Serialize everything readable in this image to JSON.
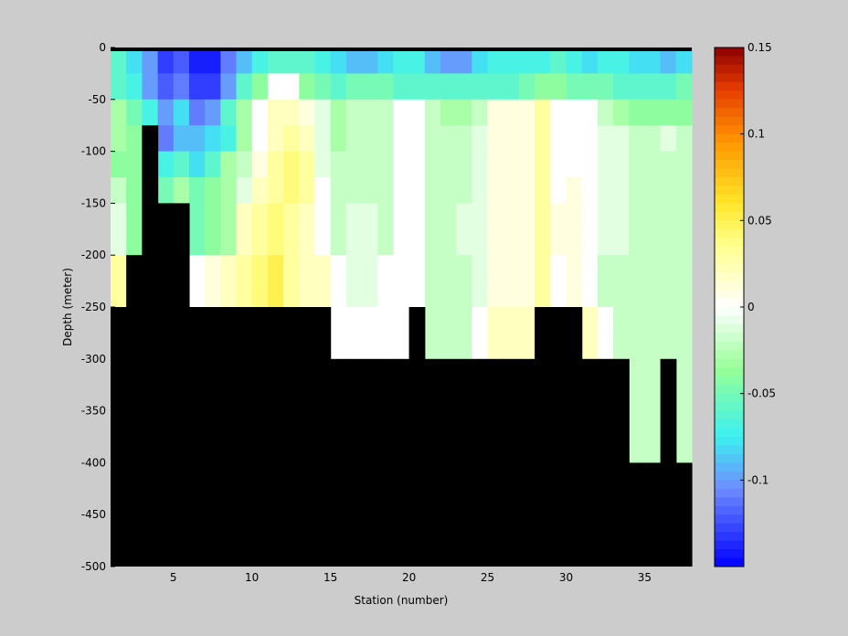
{
  "chart_data": {
    "type": "heatmap",
    "title": "",
    "xlabel": "Station (number)",
    "ylabel": "Depth (meter)",
    "xlim": [
      1,
      38
    ],
    "ylim": [
      -500,
      0
    ],
    "xticks": [
      5,
      10,
      15,
      20,
      25,
      30,
      35
    ],
    "yticks": [
      0,
      -50,
      -100,
      -150,
      -200,
      -250,
      -300,
      -350,
      -400,
      -450,
      -500
    ],
    "grid": false,
    "colorbar": {
      "range": [
        -0.15,
        0.15
      ],
      "ticks": [
        0.15,
        0.1,
        0.05,
        0,
        -0.05,
        -0.1
      ],
      "colormap": "blue-cyan-green-white-yellow-orange-red",
      "levels": 60
    },
    "mask_color": "#000000",
    "stations": [
      1,
      2,
      3,
      4,
      5,
      6,
      7,
      8,
      9,
      10,
      11,
      12,
      13,
      14,
      15,
      16,
      17,
      18,
      19,
      20,
      21,
      22,
      23,
      24,
      25,
      26,
      27,
      28,
      29,
      30,
      31,
      32,
      33,
      34,
      35,
      36,
      37
    ],
    "depth_bins": [
      [
        0,
        -25
      ],
      [
        -25,
        -50
      ],
      [
        -50,
        -75
      ],
      [
        -75,
        -100
      ],
      [
        -100,
        -125
      ],
      [
        -125,
        -150
      ],
      [
        -150,
        -175
      ],
      [
        -175,
        -200
      ],
      [
        -200,
        -225
      ],
      [
        -225,
        -250
      ],
      [
        -250,
        -275
      ],
      [
        -275,
        -300
      ],
      [
        -300,
        -350
      ],
      [
        -350,
        -400
      ]
    ],
    "bottom_depth": [
      -250,
      -200,
      -75,
      -150,
      -150,
      -250,
      -250,
      -250,
      -250,
      -250,
      -250,
      -250,
      -250,
      -250,
      -300,
      -300,
      -300,
      -300,
      -300,
      -250,
      -300,
      -300,
      -300,
      -300,
      -300,
      -300,
      -300,
      -250,
      -250,
      -250,
      -300,
      -300,
      -300,
      -400,
      -400,
      -300,
      -400
    ],
    "values": [
      [
        -0.06,
        -0.08,
        -0.1,
        -0.13,
        -0.12,
        -0.14,
        -0.14,
        -0.11,
        -0.09,
        -0.07,
        -0.06,
        -0.06,
        -0.06,
        -0.07,
        -0.08,
        -0.09,
        -0.09,
        -0.08,
        -0.07,
        -0.07,
        -0.09,
        -0.1,
        -0.1,
        -0.08,
        -0.07,
        -0.07,
        -0.07,
        -0.07,
        -0.06,
        -0.07,
        -0.08,
        -0.07,
        -0.07,
        -0.08,
        -0.08,
        -0.09,
        -0.08
      ],
      [
        -0.06,
        -0.07,
        -0.1,
        -0.12,
        -0.11,
        -0.13,
        -0.13,
        -0.1,
        -0.06,
        -0.04,
        0.0,
        0.0,
        -0.04,
        -0.05,
        -0.06,
        -0.05,
        -0.05,
        -0.05,
        -0.06,
        -0.06,
        -0.06,
        -0.06,
        -0.06,
        -0.06,
        -0.06,
        -0.06,
        -0.05,
        -0.04,
        -0.04,
        -0.05,
        -0.05,
        -0.05,
        -0.06,
        -0.06,
        -0.06,
        -0.06,
        -0.05
      ],
      [
        -0.03,
        -0.05,
        -0.07,
        -0.1,
        -0.08,
        -0.11,
        -0.1,
        -0.06,
        -0.03,
        0.0,
        0.02,
        0.02,
        0.01,
        -0.01,
        -0.03,
        -0.02,
        -0.02,
        -0.02,
        0.0,
        0.0,
        -0.02,
        -0.03,
        -0.03,
        -0.02,
        0.01,
        0.01,
        0.01,
        0.03,
        0.0,
        0.0,
        0.0,
        -0.02,
        -0.03,
        -0.04,
        -0.04,
        -0.04,
        -0.04
      ],
      [
        -0.03,
        -0.04,
        null,
        -0.11,
        -0.09,
        -0.09,
        -0.08,
        -0.07,
        -0.03,
        0.0,
        0.02,
        0.03,
        0.02,
        -0.01,
        -0.03,
        -0.02,
        -0.02,
        -0.02,
        0.0,
        0.0,
        -0.02,
        -0.02,
        -0.02,
        -0.01,
        0.01,
        0.01,
        0.01,
        0.03,
        0.0,
        0.0,
        0.0,
        -0.01,
        -0.01,
        -0.02,
        -0.02,
        -0.01,
        -0.02
      ],
      [
        -0.04,
        -0.04,
        null,
        -0.07,
        -0.06,
        -0.08,
        -0.06,
        -0.03,
        -0.02,
        0.01,
        0.03,
        0.04,
        0.03,
        -0.01,
        -0.02,
        -0.02,
        -0.02,
        -0.02,
        0.0,
        0.0,
        -0.02,
        -0.02,
        -0.02,
        -0.01,
        0.01,
        0.01,
        0.01,
        0.03,
        0.0,
        0.0,
        0.0,
        -0.01,
        -0.01,
        -0.02,
        -0.02,
        -0.02,
        -0.02
      ],
      [
        -0.02,
        -0.04,
        null,
        -0.05,
        -0.03,
        -0.05,
        -0.04,
        -0.03,
        -0.01,
        0.02,
        0.03,
        0.04,
        0.03,
        0.0,
        -0.02,
        -0.02,
        -0.02,
        -0.02,
        0.0,
        0.0,
        -0.02,
        -0.02,
        -0.02,
        -0.01,
        0.01,
        0.01,
        0.01,
        0.03,
        0.0,
        0.01,
        0.0,
        -0.01,
        -0.01,
        -0.02,
        -0.02,
        -0.02,
        -0.02
      ],
      [
        -0.01,
        -0.04,
        null,
        null,
        null,
        -0.05,
        -0.04,
        -0.03,
        0.02,
        0.03,
        0.04,
        0.03,
        0.02,
        0.0,
        -0.02,
        -0.01,
        -0.01,
        -0.02,
        0.0,
        0.0,
        -0.02,
        -0.02,
        -0.01,
        -0.01,
        0.01,
        0.01,
        0.01,
        0.03,
        0.01,
        0.01,
        0.0,
        -0.01,
        -0.01,
        -0.02,
        -0.02,
        -0.02,
        -0.02
      ],
      [
        -0.01,
        -0.04,
        null,
        null,
        null,
        -0.05,
        -0.04,
        -0.03,
        0.02,
        0.03,
        0.04,
        0.03,
        0.02,
        0.0,
        -0.02,
        -0.01,
        -0.01,
        -0.02,
        0.0,
        0.0,
        -0.02,
        -0.02,
        -0.01,
        -0.01,
        0.01,
        0.01,
        0.01,
        0.03,
        0.01,
        0.01,
        0.0,
        -0.01,
        -0.01,
        -0.02,
        -0.02,
        -0.02,
        -0.02
      ],
      [
        0.03,
        null,
        null,
        null,
        null,
        0.0,
        0.01,
        0.02,
        0.03,
        0.04,
        0.05,
        0.03,
        0.02,
        0.02,
        0.0,
        -0.01,
        -0.01,
        0.0,
        0.0,
        0.0,
        -0.02,
        -0.02,
        -0.02,
        -0.01,
        0.01,
        0.01,
        0.01,
        0.03,
        0.0,
        0.01,
        0.0,
        -0.02,
        -0.02,
        -0.02,
        -0.02,
        -0.02,
        -0.02
      ],
      [
        0.03,
        null,
        null,
        null,
        null,
        0.0,
        0.01,
        0.02,
        0.03,
        0.04,
        0.05,
        0.03,
        0.02,
        0.02,
        0.0,
        -0.01,
        -0.01,
        0.0,
        0.0,
        0.0,
        -0.02,
        -0.02,
        -0.02,
        -0.01,
        0.01,
        0.01,
        0.01,
        0.03,
        0.0,
        0.01,
        0.0,
        -0.02,
        -0.02,
        -0.02,
        -0.02,
        -0.02,
        -0.02
      ],
      [
        null,
        null,
        null,
        null,
        null,
        null,
        null,
        null,
        null,
        null,
        null,
        null,
        null,
        null,
        0.0,
        0.0,
        0.0,
        0.0,
        0.0,
        null,
        -0.02,
        -0.02,
        -0.02,
        0.0,
        0.02,
        0.02,
        0.02,
        null,
        null,
        null,
        0.02,
        0.0,
        -0.02,
        -0.02,
        -0.02,
        -0.02,
        -0.02
      ],
      [
        null,
        null,
        null,
        null,
        null,
        null,
        null,
        null,
        null,
        null,
        null,
        null,
        null,
        null,
        0.0,
        0.0,
        0.0,
        0.0,
        0.0,
        null,
        -0.02,
        -0.02,
        -0.02,
        0.0,
        0.02,
        0.02,
        0.02,
        null,
        null,
        null,
        0.02,
        0.0,
        -0.02,
        -0.02,
        -0.02,
        -0.02,
        -0.02
      ],
      [
        null,
        null,
        null,
        null,
        null,
        null,
        null,
        null,
        null,
        null,
        null,
        null,
        null,
        null,
        null,
        null,
        null,
        null,
        null,
        null,
        null,
        null,
        null,
        null,
        null,
        null,
        null,
        null,
        null,
        null,
        null,
        null,
        null,
        -0.02,
        -0.02,
        null,
        -0.02
      ],
      [
        null,
        null,
        null,
        null,
        null,
        null,
        null,
        null,
        null,
        null,
        null,
        null,
        null,
        null,
        null,
        null,
        null,
        null,
        null,
        null,
        null,
        null,
        null,
        null,
        null,
        null,
        null,
        null,
        null,
        null,
        null,
        null,
        null,
        -0.02,
        -0.02,
        null,
        -0.02
      ]
    ]
  }
}
